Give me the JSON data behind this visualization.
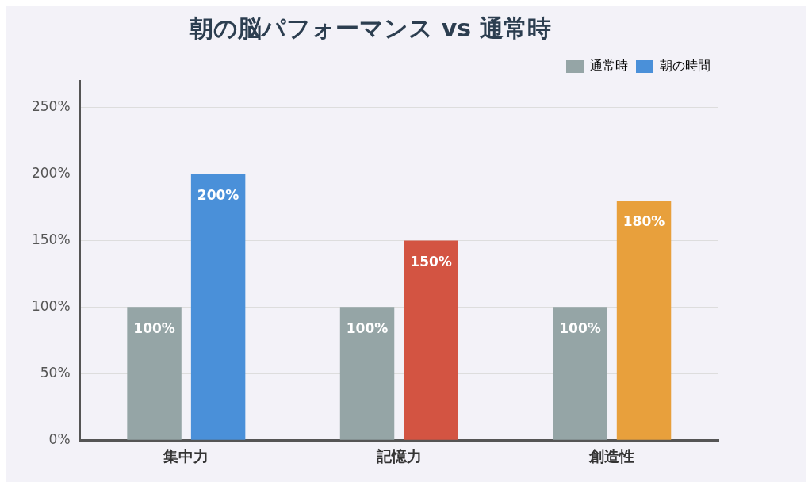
{
  "chart_data": {
    "type": "bar",
    "title": "朝の脳パフォーマンス vs 通常時",
    "categories": [
      "集中力",
      "記憶力",
      "創造性"
    ],
    "series": [
      {
        "name": "通常時",
        "color": "#95a5a6",
        "values": [
          100,
          100,
          100
        ],
        "value_labels": [
          "100%",
          "100%",
          "100%"
        ]
      },
      {
        "name": "朝の時間",
        "color": "#4a90d9",
        "colors": [
          "#4a90d9",
          "#d35442",
          "#e8a03c"
        ],
        "values": [
          200,
          150,
          180
        ],
        "value_labels": [
          "200%",
          "150%",
          "180%"
        ]
      }
    ],
    "ylim": [
      0,
      270
    ],
    "yticks": [
      {
        "value": 0,
        "label": "0%"
      },
      {
        "value": 50,
        "label": "50%"
      },
      {
        "value": 100,
        "label": "100%"
      },
      {
        "value": 150,
        "label": "150%"
      },
      {
        "value": 200,
        "label": "200%"
      },
      {
        "value": 250,
        "label": "250%"
      }
    ],
    "grid": "y",
    "legend": "top right"
  }
}
